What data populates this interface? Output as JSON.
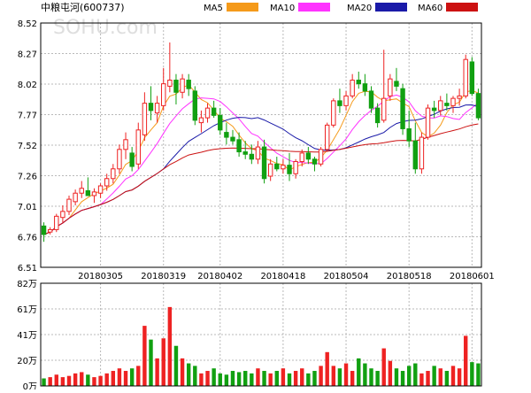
{
  "chart_data": {
    "type": "candlestick",
    "title": "中粮屯河(600737)",
    "watermark": "SOHU.com",
    "legend": [
      {
        "name": "MA5",
        "color": "#f59a1a"
      },
      {
        "name": "MA10",
        "color": "#ff33ff"
      },
      {
        "name": "MA20",
        "color": "#1a1aa8"
      },
      {
        "name": "MA60",
        "color": "#cc1111"
      }
    ],
    "price_axis": {
      "ticks": [
        "8.52",
        "8.27",
        "8.02",
        "7.77",
        "7.52",
        "7.26",
        "7.01",
        "6.76",
        "6.51"
      ],
      "min": 6.51,
      "max": 8.52
    },
    "x_axis": {
      "labels": [
        {
          "label": "20180305",
          "index": 9
        },
        {
          "label": "20180319",
          "index": 19
        },
        {
          "label": "20180402",
          "index": 28
        },
        {
          "label": "20180418",
          "index": 38
        },
        {
          "label": "20180504",
          "index": 48
        },
        {
          "label": "20180518",
          "index": 58
        },
        {
          "label": "20180601",
          "index": 68
        }
      ]
    },
    "volume_axis": {
      "ticks": [
        "82万",
        "61万",
        "41万",
        "20万",
        "0万"
      ],
      "max": 82
    },
    "colors": {
      "up": "#ee2222",
      "down": "#11a011",
      "grid": "#b9b9b9",
      "axis": "#000000",
      "text": "#000000"
    },
    "ohlc": [
      [
        6.85,
        6.88,
        6.72,
        6.78
      ],
      [
        6.8,
        6.84,
        6.78,
        6.82
      ],
      [
        6.82,
        6.95,
        6.8,
        6.93
      ],
      [
        6.92,
        7.02,
        6.88,
        6.97
      ],
      [
        6.97,
        7.1,
        6.94,
        7.07
      ],
      [
        7.05,
        7.15,
        7.02,
        7.12
      ],
      [
        7.12,
        7.22,
        7.08,
        7.16
      ],
      [
        7.14,
        7.25,
        7.1,
        7.1
      ],
      [
        7.1,
        7.16,
        7.04,
        7.13
      ],
      [
        7.12,
        7.2,
        7.08,
        7.18
      ],
      [
        7.18,
        7.28,
        7.14,
        7.24
      ],
      [
        7.24,
        7.36,
        7.2,
        7.32
      ],
      [
        7.32,
        7.52,
        7.28,
        7.48
      ],
      [
        7.48,
        7.62,
        7.4,
        7.56
      ],
      [
        7.45,
        7.5,
        7.3,
        7.34
      ],
      [
        7.36,
        7.7,
        7.32,
        7.64
      ],
      [
        7.6,
        7.95,
        7.55,
        7.86
      ],
      [
        7.86,
        8.0,
        7.72,
        7.8
      ],
      [
        7.78,
        7.92,
        7.7,
        7.86
      ],
      [
        7.84,
        8.15,
        7.8,
        8.02
      ],
      [
        8.0,
        8.36,
        7.95,
        8.05
      ],
      [
        8.05,
        8.1,
        7.85,
        7.95
      ],
      [
        7.95,
        8.1,
        7.9,
        8.06
      ],
      [
        8.05,
        8.1,
        7.92,
        7.98
      ],
      [
        7.96,
        8.0,
        7.68,
        7.72
      ],
      [
        7.7,
        7.8,
        7.62,
        7.74
      ],
      [
        7.74,
        7.86,
        7.7,
        7.82
      ],
      [
        7.82,
        7.88,
        7.74,
        7.76
      ],
      [
        7.76,
        7.82,
        7.6,
        7.64
      ],
      [
        7.62,
        7.7,
        7.52,
        7.58
      ],
      [
        7.58,
        7.64,
        7.52,
        7.55
      ],
      [
        7.56,
        7.62,
        7.42,
        7.46
      ],
      [
        7.46,
        7.55,
        7.4,
        7.44
      ],
      [
        7.44,
        7.52,
        7.36,
        7.4
      ],
      [
        7.4,
        7.55,
        7.36,
        7.5
      ],
      [
        7.5,
        7.56,
        7.2,
        7.24
      ],
      [
        7.26,
        7.4,
        7.22,
        7.36
      ],
      [
        7.36,
        7.42,
        7.3,
        7.32
      ],
      [
        7.32,
        7.4,
        7.28,
        7.35
      ],
      [
        7.35,
        7.45,
        7.22,
        7.28
      ],
      [
        7.28,
        7.4,
        7.24,
        7.38
      ],
      [
        7.38,
        7.48,
        7.34,
        7.45
      ],
      [
        7.45,
        7.5,
        7.36,
        7.4
      ],
      [
        7.4,
        7.42,
        7.3,
        7.36
      ],
      [
        7.36,
        7.5,
        7.34,
        7.48
      ],
      [
        7.48,
        7.7,
        7.46,
        7.68
      ],
      [
        7.68,
        7.9,
        7.66,
        7.88
      ],
      [
        7.88,
        7.98,
        7.78,
        7.84
      ],
      [
        7.84,
        7.96,
        7.8,
        7.92
      ],
      [
        7.92,
        8.1,
        7.9,
        8.05
      ],
      [
        8.05,
        8.12,
        7.98,
        8.02
      ],
      [
        8.02,
        8.1,
        7.92,
        7.96
      ],
      [
        7.96,
        8.0,
        7.78,
        7.82
      ],
      [
        7.82,
        7.86,
        7.66,
        7.7
      ],
      [
        7.72,
        8.3,
        7.7,
        7.9
      ],
      [
        7.92,
        8.1,
        7.88,
        8.06
      ],
      [
        8.04,
        8.15,
        7.96,
        8.0
      ],
      [
        7.98,
        8.02,
        7.6,
        7.65
      ],
      [
        7.65,
        7.8,
        7.5,
        7.55
      ],
      [
        7.55,
        7.7,
        7.28,
        7.32
      ],
      [
        7.32,
        7.62,
        7.28,
        7.58
      ],
      [
        7.58,
        7.85,
        7.56,
        7.82
      ],
      [
        7.82,
        7.88,
        7.74,
        7.8
      ],
      [
        7.8,
        7.92,
        7.76,
        7.88
      ],
      [
        7.86,
        7.94,
        7.8,
        7.84
      ],
      [
        7.84,
        7.92,
        7.78,
        7.9
      ],
      [
        7.9,
        7.98,
        7.84,
        7.92
      ],
      [
        7.92,
        8.26,
        7.9,
        8.22
      ],
      [
        8.2,
        8.24,
        7.92,
        7.94
      ],
      [
        7.94,
        7.98,
        7.72,
        7.74
      ]
    ],
    "volume": [
      6,
      7,
      9,
      7,
      8,
      10,
      11,
      9,
      7,
      8,
      10,
      12,
      14,
      12,
      14,
      16,
      48,
      37,
      22,
      38,
      63,
      32,
      22,
      18,
      16,
      10,
      12,
      14,
      10,
      9,
      12,
      11,
      12,
      10,
      14,
      12,
      10,
      12,
      14,
      10,
      12,
      14,
      10,
      12,
      16,
      27,
      16,
      14,
      18,
      12,
      22,
      18,
      14,
      12,
      30,
      20,
      14,
      12,
      16,
      18,
      10,
      12,
      16,
      14,
      12,
      16,
      14,
      40,
      19,
      18
    ]
  }
}
